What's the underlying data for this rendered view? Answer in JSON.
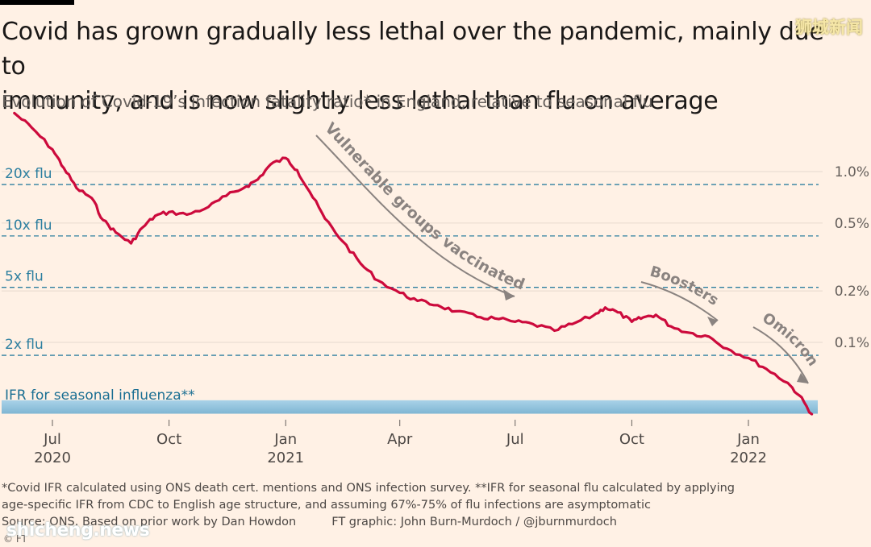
{
  "header": {
    "title_line1": "Covid has grown gradually less lethal over the pandemic, mainly due to",
    "title_line2": "immunity, and is now slightly less lethal than flu on average",
    "subtitle": "Evolution of Covid-19’s infection fatality ratio* in England, relative to seasonal flu"
  },
  "watermarks": {
    "top_right": "狮城新闻",
    "bottom_left": "shicheng.news"
  },
  "footer": {
    "note1": "*Covid IFR calculated using ONS death cert. mentions and ONS infection survey.  **IFR for seasonal flu calculated by applying",
    "note2": "age-specific IFR from CDC to English age structure, and assuming 67%-75% of flu infections are asymptomatic",
    "source": "Source: ONS. Based on prior work by Dan Howdon",
    "credit": "FT graphic: John Burn-Murdoch / @jburnmurdoch",
    "copyright": "© FT"
  },
  "colors": {
    "background": "#fff1e5",
    "line": "#cc0a3c",
    "reference_line": "#2d7fa0",
    "band": "#8fc3dd",
    "annotation": "#8a8380"
  },
  "chart_data": {
    "type": "line",
    "title": "Covid has grown gradually less lethal over the pandemic, mainly due to immunity, and is now slightly less lethal than flu on average",
    "subtitle": "Evolution of Covid-19’s infection fatality ratio* in England, relative to seasonal flu",
    "x_ticks": [
      {
        "month": "Jul",
        "year": "2020",
        "date": "2020-07"
      },
      {
        "month": "Oct",
        "year": "",
        "date": "2020-10"
      },
      {
        "month": "Jan",
        "year": "2021",
        "date": "2021-01"
      },
      {
        "month": "Apr",
        "year": "",
        "date": "2021-04"
      },
      {
        "month": "Jul",
        "year": "",
        "date": "2021-07"
      },
      {
        "month": "Oct",
        "year": "",
        "date": "2021-10"
      },
      {
        "month": "Jan",
        "year": "2022",
        "date": "2022-01"
      }
    ],
    "y_scale": "log",
    "y_ticks_right": [
      {
        "label": "1.0%",
        "ifr": 1.0
      },
      {
        "label": "0.5%",
        "ifr": 0.5
      },
      {
        "label": "0.2%",
        "ifr": 0.2
      },
      {
        "label": "0.1%",
        "ifr": 0.1
      }
    ],
    "reference_lines": [
      {
        "label": "20x flu",
        "ifr": 0.84
      },
      {
        "label": "10x flu",
        "ifr": 0.42
      },
      {
        "label": "5x flu",
        "ifr": 0.21
      },
      {
        "label": "2x flu",
        "ifr": 0.084
      }
    ],
    "flu_band": {
      "label": "IFR for seasonal influenza**",
      "ifr_range": [
        0.037,
        0.05
      ]
    },
    "series": [
      {
        "x": [
          "2020-06-01",
          "2020-06-15",
          "2020-07-01",
          "2020-07-10",
          "2020-07-20",
          "2020-08-01",
          "2020-08-10",
          "2020-08-20",
          "2020-09-01",
          "2020-09-10",
          "2020-09-20",
          "2020-10-01",
          "2020-10-15",
          "2020-11-01",
          "2020-11-15",
          "2020-12-01",
          "2020-12-10",
          "2020-12-20",
          "2021-01-01",
          "2021-01-10",
          "2021-01-20",
          "2021-02-01",
          "2021-02-15",
          "2021-03-01",
          "2021-03-15",
          "2021-04-01",
          "2021-04-15",
          "2021-05-01",
          "2021-05-15",
          "2021-06-01",
          "2021-06-15",
          "2021-07-01",
          "2021-07-15",
          "2021-08-01",
          "2021-08-15",
          "2021-09-01",
          "2021-09-10",
          "2021-09-20",
          "2021-10-01",
          "2021-10-10",
          "2021-10-20",
          "2021-11-01",
          "2021-11-15",
          "2021-12-01",
          "2021-12-15",
          "2022-01-01",
          "2022-01-15",
          "2022-02-01",
          "2022-02-10",
          "2022-02-20"
        ],
        "values": [
          2.2,
          1.8,
          1.35,
          1.05,
          0.8,
          0.7,
          0.52,
          0.44,
          0.38,
          0.47,
          0.55,
          0.58,
          0.56,
          0.62,
          0.72,
          0.82,
          0.9,
          1.1,
          1.2,
          1.02,
          0.76,
          0.53,
          0.39,
          0.29,
          0.23,
          0.195,
          0.175,
          0.165,
          0.152,
          0.141,
          0.138,
          0.132,
          0.128,
          0.117,
          0.128,
          0.144,
          0.16,
          0.15,
          0.132,
          0.14,
          0.145,
          0.124,
          0.114,
          0.108,
          0.092,
          0.081,
          0.07,
          0.058,
          0.049,
          0.038
        ]
      }
    ],
    "annotations": [
      {
        "text": "Vulnerable groups vaccinated"
      },
      {
        "text": "Boosters"
      },
      {
        "text": "Omicron"
      }
    ]
  }
}
